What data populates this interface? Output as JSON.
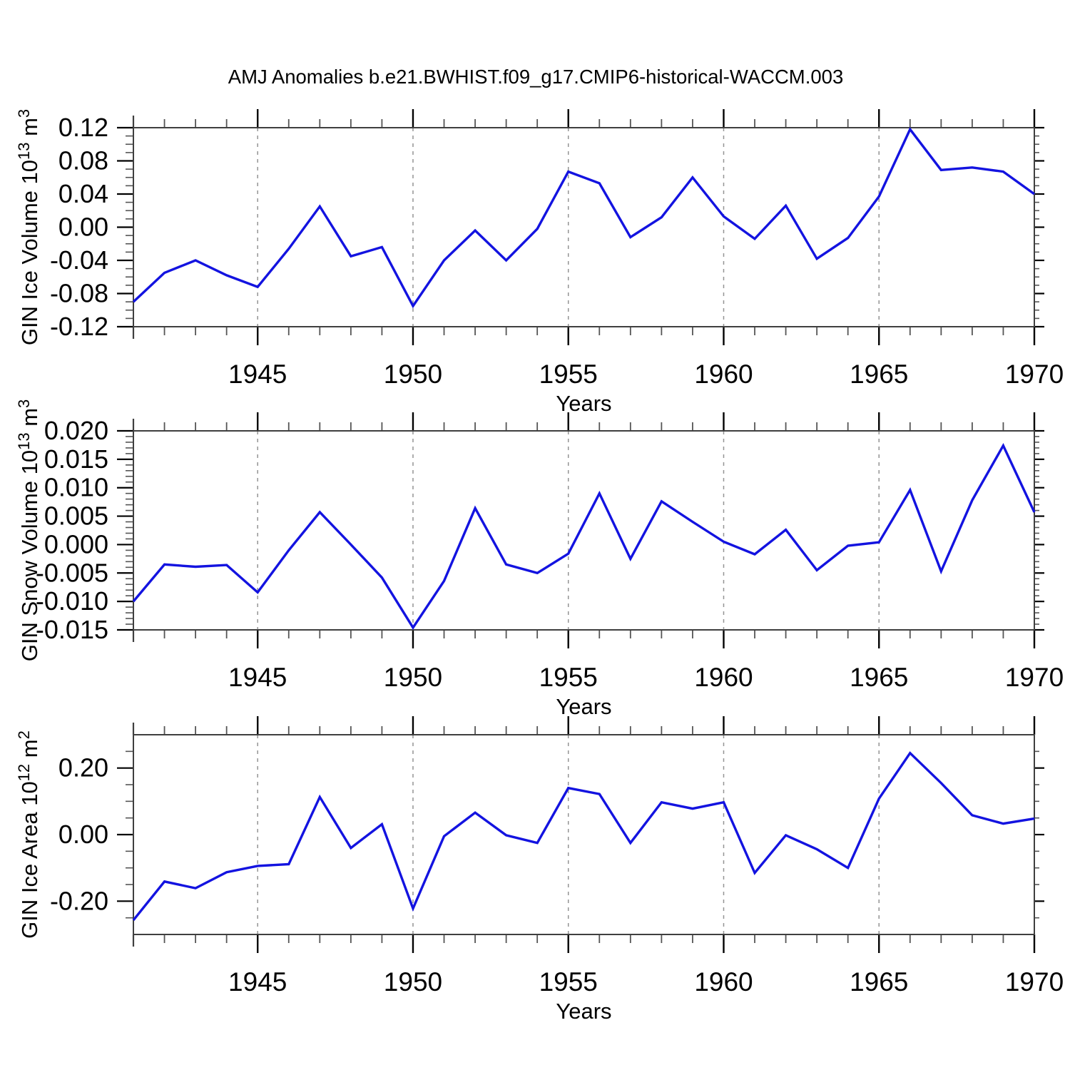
{
  "title": "AMJ Anomalies b.e21.BWHIST.f09_g17.CMIP6-historical-WACCM.003",
  "x_axis": {
    "label": "Years",
    "tick_labels": [
      "1945",
      "1950",
      "1955",
      "1960",
      "1965",
      "1970"
    ],
    "tick_years": [
      1945,
      1950,
      1955,
      1960,
      1965,
      1970
    ],
    "gridline_years": [
      1945,
      1950,
      1955,
      1960,
      1965
    ],
    "range": [
      1941,
      1970
    ]
  },
  "style": {
    "line_color": "#1313e0",
    "grid_color": "#949494",
    "frame_color": "#3f3f3f",
    "major_tick_color": "#000000",
    "minor_tick_color": "#555555",
    "text_color": "#000000",
    "background": "#ffffff"
  },
  "chart_data": [
    {
      "type": "line",
      "panel": "gin-ice-volume",
      "ylabel": "GIN Ice Volume 10¹³ m³",
      "ylabel_parts": [
        {
          "text": "GIN Ice Volume 10",
          "sup": false
        },
        {
          "text": "13",
          "sup": true
        },
        {
          "text": " m",
          "sup": false
        },
        {
          "text": "3",
          "sup": true
        }
      ],
      "ylim": [
        -0.12,
        0.12
      ],
      "ytick_values": [
        0.12,
        0.08,
        0.04,
        0.0,
        -0.04,
        -0.08,
        -0.12
      ],
      "ytick_labels": [
        "0.12",
        "0.08",
        "0.04",
        "0.00",
        "-0.04",
        "-0.08",
        "-0.12"
      ],
      "ytick_minor_step": 0.01,
      "x": [
        1941,
        1942,
        1943,
        1944,
        1945,
        1946,
        1947,
        1948,
        1949,
        1950,
        1951,
        1952,
        1953,
        1954,
        1955,
        1956,
        1957,
        1958,
        1959,
        1960,
        1961,
        1962,
        1963,
        1964,
        1965,
        1966,
        1967,
        1968,
        1969,
        1970
      ],
      "values": [
        -0.09,
        -0.055,
        -0.04,
        -0.058,
        -0.072,
        -0.026,
        0.025,
        -0.035,
        -0.024,
        -0.095,
        -0.04,
        -0.004,
        -0.04,
        -0.002,
        0.067,
        0.053,
        -0.012,
        0.012,
        0.06,
        0.013,
        -0.014,
        0.026,
        -0.038,
        -0.013,
        0.037,
        0.118,
        0.069,
        0.072,
        0.067,
        0.04
      ]
    },
    {
      "type": "line",
      "panel": "gin-snow-volume",
      "ylabel": "GIN Snow Volume 10¹³ m³",
      "ylabel_parts": [
        {
          "text": "GIN Snow Volume 10",
          "sup": false
        },
        {
          "text": "13",
          "sup": true
        },
        {
          "text": " m",
          "sup": false
        },
        {
          "text": "3",
          "sup": true
        }
      ],
      "ylim": [
        -0.015,
        0.02
      ],
      "ytick_values": [
        0.02,
        0.015,
        0.01,
        0.005,
        0.0,
        -0.005,
        -0.01,
        -0.015
      ],
      "ytick_labels": [
        "0.020",
        "0.015",
        "0.010",
        "0.005",
        "0.000",
        "-0.005",
        "-0.010",
        "-0.015"
      ],
      "ytick_minor_step": 0.001,
      "x": [
        1941,
        1942,
        1943,
        1944,
        1945,
        1946,
        1947,
        1948,
        1949,
        1950,
        1951,
        1952,
        1953,
        1954,
        1955,
        1956,
        1957,
        1958,
        1959,
        1960,
        1961,
        1962,
        1963,
        1964,
        1965,
        1966,
        1967,
        1968,
        1969,
        1970
      ],
      "values": [
        -0.01,
        -0.0035,
        -0.0039,
        -0.0036,
        -0.0084,
        -0.001,
        0.0057,
        0.0,
        -0.0058,
        -0.0146,
        -0.0064,
        0.0064,
        -0.0035,
        -0.005,
        -0.0016,
        0.009,
        -0.0025,
        0.0076,
        0.004,
        0.0005,
        -0.0017,
        0.0026,
        -0.0045,
        -0.0002,
        0.0004,
        0.0096,
        -0.0047,
        0.0078,
        0.0174,
        0.0057
      ]
    },
    {
      "type": "line",
      "panel": "gin-ice-area",
      "ylabel": "GIN Ice Area 10¹² m²",
      "ylabel_parts": [
        {
          "text": "GIN Ice Area 10",
          "sup": false
        },
        {
          "text": "12",
          "sup": true
        },
        {
          "text": " m",
          "sup": false
        },
        {
          "text": "2",
          "sup": true
        }
      ],
      "ylim": [
        -0.3,
        0.3
      ],
      "ytick_values": [
        0.2,
        0.0,
        -0.2
      ],
      "ytick_labels": [
        "0.20",
        "0.00",
        "-0.20"
      ],
      "ytick_minor_step": 0.05,
      "x": [
        1941,
        1942,
        1943,
        1944,
        1945,
        1946,
        1947,
        1948,
        1949,
        1950,
        1951,
        1952,
        1953,
        1954,
        1955,
        1956,
        1957,
        1958,
        1959,
        1960,
        1961,
        1962,
        1963,
        1964,
        1965,
        1966,
        1967,
        1968,
        1969,
        1970
      ],
      "values": [
        -0.257,
        -0.141,
        -0.161,
        -0.113,
        -0.094,
        -0.089,
        0.113,
        -0.04,
        0.031,
        -0.222,
        -0.005,
        0.066,
        -0.002,
        -0.025,
        0.14,
        0.122,
        -0.025,
        0.097,
        0.078,
        0.097,
        -0.115,
        -0.002,
        -0.044,
        -0.1,
        0.108,
        0.245,
        0.155,
        0.058,
        0.033,
        0.048
      ]
    }
  ]
}
